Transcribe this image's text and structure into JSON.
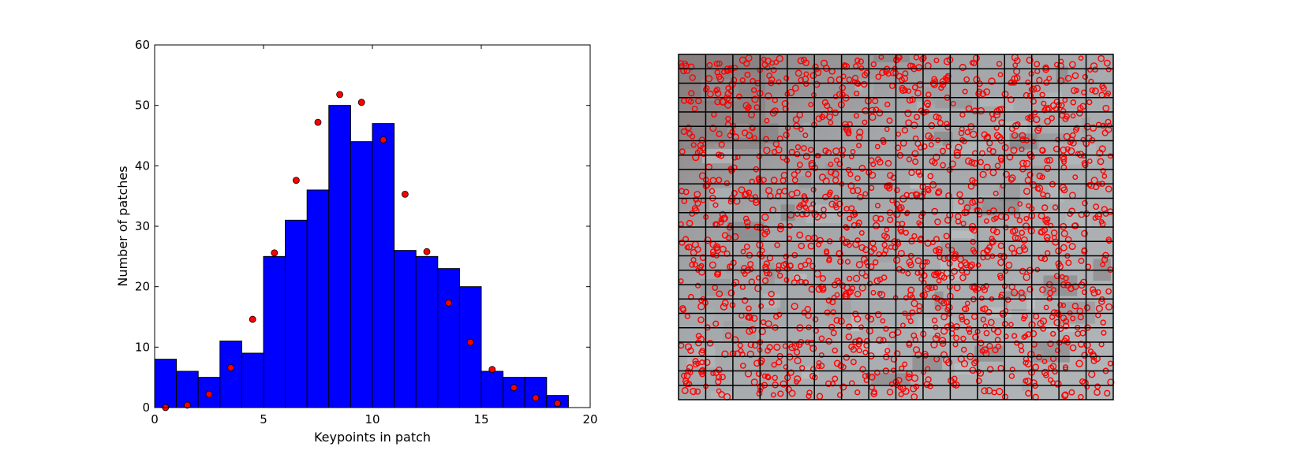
{
  "chart_data": [
    {
      "type": "bar",
      "subtype": "histogram",
      "xlabel": "Keypoints in patch",
      "ylabel": "Number of patches",
      "xlim": [
        0,
        20
      ],
      "ylim": [
        0,
        60
      ],
      "xticks": [
        "0",
        "5",
        "10",
        "15",
        "20"
      ],
      "yticks": [
        "0",
        "10",
        "20",
        "30",
        "40",
        "50",
        "60"
      ],
      "grid": false,
      "bin_width": 1,
      "bins": [
        0,
        1,
        2,
        3,
        4,
        5,
        6,
        7,
        8,
        9,
        10,
        11,
        12,
        13,
        14,
        15,
        16,
        17,
        18
      ],
      "values": [
        8,
        6,
        5,
        11,
        9,
        25,
        31,
        36,
        50,
        44,
        47,
        26,
        25,
        23,
        20,
        6,
        5,
        5,
        2
      ],
      "bar_color": "#0000ff",
      "overlay": {
        "type": "scatter",
        "color": "#ff0000",
        "x": [
          0.5,
          1.5,
          2.5,
          3.5,
          4.5,
          5.5,
          6.5,
          7.5,
          8.5,
          9.5,
          10.5,
          11.5,
          12.5,
          13.5,
          14.5,
          15.5,
          16.5,
          17.5,
          18.5
        ],
        "y": [
          0.0,
          0.4,
          2.2,
          6.6,
          14.6,
          25.6,
          37.6,
          47.2,
          51.8,
          50.5,
          44.3,
          35.3,
          25.8,
          17.3,
          10.8,
          6.3,
          3.3,
          1.6,
          0.7
        ]
      }
    },
    {
      "type": "image",
      "content": "aerial-image-patch-grid-with-keypoints",
      "grid_cols": 16,
      "grid_rows": 24,
      "marker_color": "#ff0000",
      "grid_color": "#000000"
    }
  ]
}
